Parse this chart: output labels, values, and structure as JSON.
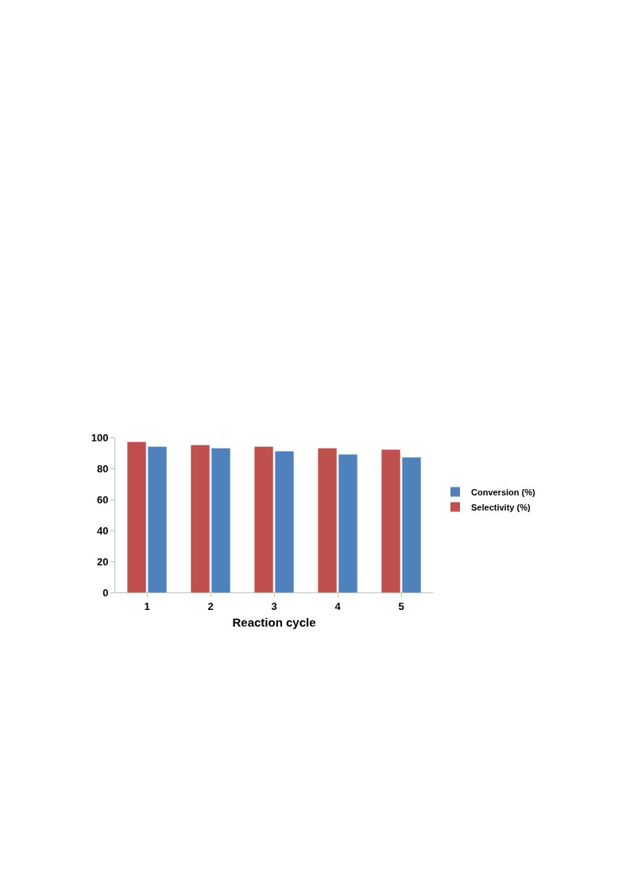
{
  "chart_data": {
    "type": "bar",
    "xlabel": "Reaction cycle",
    "categories": [
      "1",
      "2",
      "3",
      "4",
      "5"
    ],
    "series": [
      {
        "name": "Selectivity (%)",
        "color": "#c0504d",
        "values": [
          97,
          95,
          94,
          93,
          92
        ]
      },
      {
        "name": "Conversion (%)",
        "color": "#4f81bd",
        "values": [
          94,
          93,
          91,
          89,
          87
        ]
      }
    ],
    "ylim": [
      0,
      100
    ],
    "yticks": [
      0,
      20,
      40,
      60,
      80,
      100
    ],
    "grid": false,
    "legend": "right"
  }
}
